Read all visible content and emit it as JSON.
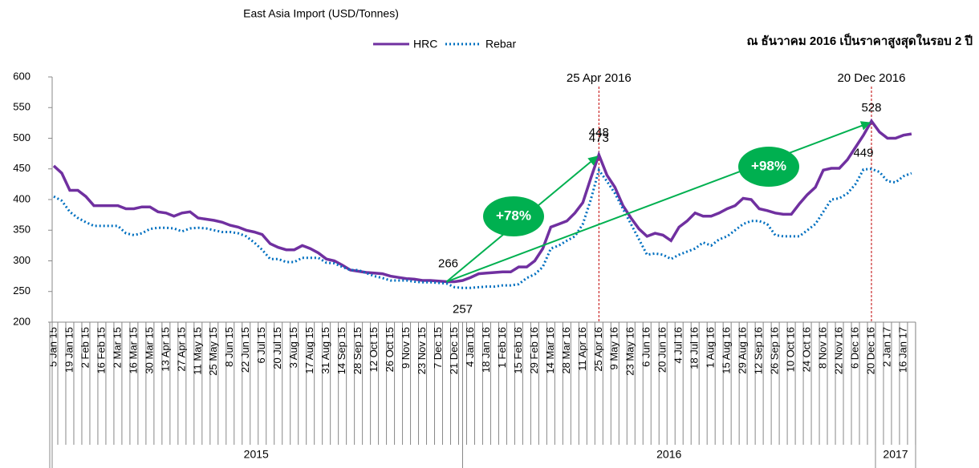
{
  "chart_data": {
    "type": "line",
    "title": "East Asia Import (USD/Tonnes)",
    "subtitle": "ณ ธันวาคม 2016 เป็นราคาสูงสุดในรอบ 2 ปี",
    "categories": [
      "5 Jan 15",
      null,
      "19 Jan 15",
      null,
      "2 Feb 15",
      null,
      "16 Feb 15",
      null,
      "2 Mar 15",
      null,
      "16 Mar 15",
      null,
      "30 Mar 15",
      null,
      "13 Apr 15",
      null,
      "27 Apr 15",
      null,
      "11 May 15",
      null,
      "25 May 15",
      null,
      "8 Jun 15",
      null,
      "22 Jun 15",
      null,
      "6 Jul 15",
      null,
      "20 Jul 15",
      null,
      "3 Aug 15",
      null,
      "17 Aug 15",
      null,
      "31 Aug 15",
      null,
      "14 Sep 15",
      null,
      "28 Sep 15",
      null,
      "12 Oct 15",
      null,
      "26 Oct 15",
      null,
      "9 Nov 15",
      null,
      "23 Nov 15",
      null,
      "7 Dec 15",
      null,
      "21 Dec 15",
      null,
      "4 Jan 16",
      null,
      "18 Jan 16",
      null,
      "1 Feb 16",
      null,
      "15 Feb 16",
      null,
      "29 Feb 16",
      null,
      "14 Mar 16",
      null,
      "28 Mar 16",
      null,
      "11 Apr 16",
      null,
      "25 Apr 16",
      null,
      "9 May 16",
      null,
      "23 May 16",
      null,
      "6 Jun 16",
      null,
      "20 Jun 16",
      null,
      "4 Jul 16",
      null,
      "18 Jul 16",
      null,
      "1 Aug 16",
      null,
      "15 Aug 16",
      null,
      "29 Aug 16",
      null,
      "12 Sep 16",
      null,
      "26 Sep 16",
      null,
      "10 Oct 16",
      null,
      "24 Oct 16",
      null,
      "8 Nov 16",
      null,
      "22 Nov 16",
      null,
      "6 Dec 16",
      null,
      "20 Dec 16",
      null,
      "2 Jan 17",
      null,
      "16 Jan 17",
      null
    ],
    "groups": [
      "2015",
      "2016",
      "2017"
    ],
    "series": [
      {
        "name": "HRC",
        "color": "#7030a0",
        "style": "solid",
        "values": [
          455,
          443,
          415,
          415,
          405,
          390,
          390,
          390,
          390,
          385,
          385,
          388,
          388,
          380,
          378,
          373,
          378,
          380,
          370,
          368,
          366,
          363,
          358,
          355,
          350,
          347,
          343,
          328,
          322,
          318,
          318,
          325,
          320,
          313,
          303,
          300,
          293,
          285,
          283,
          281,
          280,
          279,
          275,
          273,
          271,
          270,
          268,
          268,
          267,
          266,
          266,
          268,
          273,
          279,
          280,
          281,
          282,
          282,
          290,
          290,
          300,
          320,
          355,
          360,
          365,
          378,
          395,
          435,
          473,
          440,
          420,
          390,
          370,
          352,
          340,
          345,
          342,
          333,
          355,
          365,
          378,
          373,
          373,
          378,
          385,
          390,
          402,
          400,
          385,
          382,
          378,
          376,
          376,
          393,
          408,
          420,
          448,
          451,
          451,
          465,
          485,
          505,
          528,
          510,
          500,
          500,
          505,
          507
        ]
      },
      {
        "name": "Rebar",
        "color": "#0070c0",
        "style": "dotted",
        "values": [
          405,
          398,
          380,
          370,
          363,
          357,
          357,
          357,
          357,
          345,
          342,
          345,
          352,
          354,
          354,
          353,
          348,
          353,
          354,
          353,
          350,
          347,
          347,
          345,
          340,
          330,
          318,
          303,
          303,
          298,
          298,
          305,
          305,
          305,
          297,
          296,
          290,
          285,
          285,
          280,
          275,
          272,
          268,
          268,
          268,
          266,
          265,
          265,
          264,
          263,
          257,
          256,
          256,
          257,
          258,
          258,
          260,
          260,
          262,
          272,
          278,
          290,
          320,
          325,
          333,
          340,
          360,
          400,
          448,
          430,
          410,
          385,
          360,
          335,
          310,
          312,
          310,
          303,
          310,
          315,
          320,
          330,
          325,
          335,
          340,
          350,
          360,
          365,
          365,
          360,
          342,
          340,
          340,
          340,
          350,
          360,
          380,
          400,
          402,
          410,
          425,
          449,
          450,
          445,
          430,
          428,
          438,
          443
        ]
      }
    ],
    "annotations": [
      "25 Apr 2016",
      "20 Dec 2016",
      "+78%",
      "+98%"
    ],
    "ylim": [
      200,
      600
    ],
    "yticks": [
      200,
      250,
      300,
      350,
      400,
      450,
      500,
      550,
      600
    ],
    "grid": false,
    "legend": "top"
  }
}
